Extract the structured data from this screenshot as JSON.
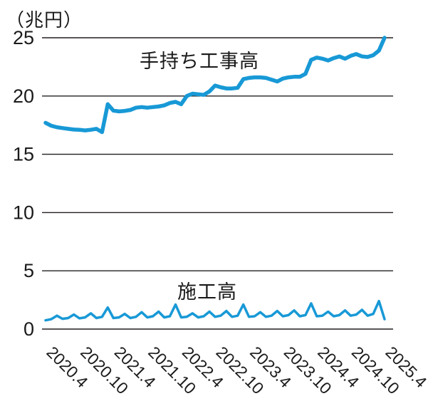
{
  "colors": {
    "line_blue": "#1899d6",
    "text": "#1a1a1a",
    "grid": "#231f20",
    "background": "#ffffff"
  },
  "chart_data": {
    "type": "line",
    "title": "（兆円）",
    "unit_label": "（兆円）",
    "legend_position": "inline-labels",
    "grid": "horizontal-only",
    "y_axis": {
      "min": 0,
      "max": 25,
      "ticks": [
        0,
        5,
        10,
        15,
        20,
        25
      ]
    },
    "x_tick_labels": [
      "2020.4",
      "2020.10",
      "2021.4",
      "2021.10",
      "2022.4",
      "2022.10",
      "2023.4",
      "2023.10",
      "2024.4",
      "2024.10",
      "2025.4"
    ],
    "x_tick_indices": [
      0,
      6,
      12,
      18,
      24,
      30,
      36,
      42,
      48,
      54,
      60
    ],
    "x_months": [
      "2020.4",
      "2020.5",
      "2020.6",
      "2020.7",
      "2020.8",
      "2020.9",
      "2020.10",
      "2020.11",
      "2020.12",
      "2021.1",
      "2021.2",
      "2021.3",
      "2021.4",
      "2021.5",
      "2021.6",
      "2021.7",
      "2021.8",
      "2021.9",
      "2021.10",
      "2021.11",
      "2021.12",
      "2022.1",
      "2022.2",
      "2022.3",
      "2022.4",
      "2022.5",
      "2022.6",
      "2022.7",
      "2022.8",
      "2022.9",
      "2022.10",
      "2022.11",
      "2022.12",
      "2023.1",
      "2023.2",
      "2023.3",
      "2023.4",
      "2023.5",
      "2023.6",
      "2023.7",
      "2023.8",
      "2023.9",
      "2023.10",
      "2023.11",
      "2023.12",
      "2024.1",
      "2024.2",
      "2024.3",
      "2024.4",
      "2024.5",
      "2024.6",
      "2024.7",
      "2024.8",
      "2024.9",
      "2024.10",
      "2024.11",
      "2024.12",
      "2025.1",
      "2025.2",
      "2025.3",
      "2025.4"
    ],
    "series": [
      {
        "name": "手持ち工事高",
        "line_width": 5.5,
        "values": [
          17.7,
          17.45,
          17.32,
          17.25,
          17.18,
          17.12,
          17.1,
          17.05,
          17.1,
          17.18,
          16.9,
          19.3,
          18.75,
          18.68,
          18.72,
          18.8,
          19.0,
          19.05,
          19.0,
          19.05,
          19.1,
          19.2,
          19.4,
          19.5,
          19.3,
          20.0,
          20.2,
          20.15,
          20.1,
          20.4,
          20.9,
          20.75,
          20.65,
          20.65,
          20.7,
          21.45,
          21.55,
          21.6,
          21.6,
          21.55,
          21.4,
          21.25,
          21.5,
          21.6,
          21.65,
          21.65,
          21.9,
          23.1,
          23.3,
          23.2,
          23.05,
          23.25,
          23.4,
          23.2,
          23.45,
          23.6,
          23.4,
          23.35,
          23.5,
          23.9,
          25.0
        ]
      },
      {
        "name": "施工高",
        "line_width": 3.5,
        "values": [
          0.75,
          0.85,
          1.15,
          0.88,
          0.95,
          1.25,
          0.92,
          1.0,
          1.35,
          0.95,
          1.05,
          1.85,
          0.95,
          1.0,
          1.3,
          0.95,
          1.05,
          1.45,
          1.0,
          1.1,
          1.5,
          1.0,
          1.1,
          2.1,
          1.0,
          1.05,
          1.35,
          1.0,
          1.1,
          1.5,
          1.05,
          1.15,
          1.55,
          1.05,
          1.15,
          2.1,
          1.05,
          1.1,
          1.45,
          1.05,
          1.15,
          1.55,
          1.1,
          1.2,
          1.6,
          1.1,
          1.2,
          2.2,
          1.1,
          1.15,
          1.5,
          1.1,
          1.2,
          1.6,
          1.15,
          1.25,
          1.65,
          1.15,
          1.3,
          2.4,
          0.85
        ]
      }
    ]
  }
}
